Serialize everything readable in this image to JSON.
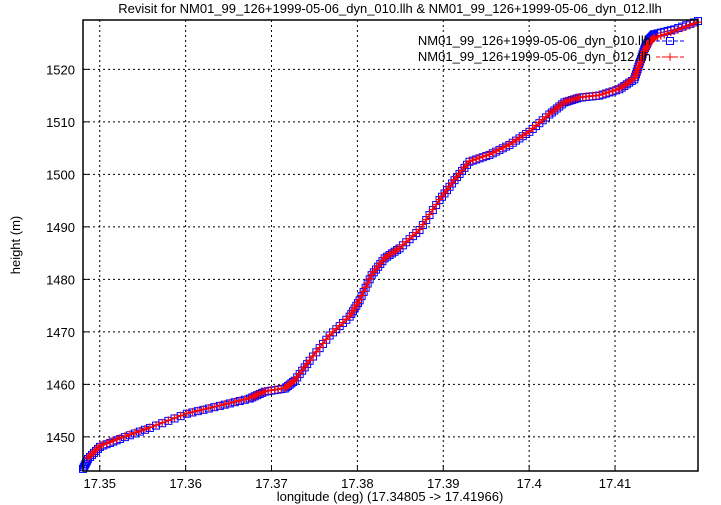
{
  "chart_data": {
    "type": "line",
    "title": "Revisit for NM01_99_126+1999-05-06_dyn_010.llh & NM01_99_126+1999-05-06_dyn_012.llh",
    "xlabel": "longitude (deg) (17.34805 -> 17.41966)",
    "ylabel": "height (m)",
    "xlim": [
      17.34805,
      17.41966
    ],
    "ylim": [
      1443.5,
      1529.4
    ],
    "xticks": [
      17.35,
      17.36,
      17.37,
      17.38,
      17.39,
      17.4,
      17.41
    ],
    "xtick_labels": [
      "17.35",
      "17.36",
      "17.37",
      "17.38",
      "17.39",
      "17.4",
      "17.41"
    ],
    "yticks": [
      1450,
      1460,
      1470,
      1480,
      1490,
      1500,
      1510,
      1520
    ],
    "ytick_labels": [
      "1450",
      "1460",
      "1470",
      "1480",
      "1490",
      "1500",
      "1510",
      "1520"
    ],
    "grid": true,
    "legend_position": "top-right",
    "series": [
      {
        "name": "NM01_99_126+1999-05-06_dyn_010.llh",
        "color": "#0000ff",
        "marker": "square",
        "x": [
          17.34805,
          17.34863,
          17.35003,
          17.35235,
          17.35584,
          17.36014,
          17.36398,
          17.36747,
          17.36921,
          17.37154,
          17.3727,
          17.37444,
          17.37677,
          17.3791,
          17.38026,
          17.38166,
          17.38317,
          17.38491,
          17.38724,
          17.38956,
          17.39131,
          17.39305,
          17.39538,
          17.3977,
          17.40003,
          17.40235,
          17.4041,
          17.40584,
          17.40817,
          17.41049,
          17.41224,
          17.41282,
          17.4134,
          17.41398,
          17.41456,
          17.41689,
          17.41966
        ],
        "y": [
          1443.9,
          1445.8,
          1448.1,
          1449.6,
          1451.7,
          1454.4,
          1455.9,
          1457.3,
          1458.6,
          1459.2,
          1460.7,
          1464.5,
          1469.3,
          1472.9,
          1476.0,
          1480.8,
          1484.0,
          1485.9,
          1489.4,
          1495.1,
          1498.9,
          1502.4,
          1503.7,
          1505.6,
          1508.1,
          1511.4,
          1513.7,
          1514.6,
          1515.0,
          1516.2,
          1518.1,
          1521.0,
          1523.8,
          1525.7,
          1526.7,
          1527.6,
          1529.2
        ]
      },
      {
        "name": "NM01_99_126+1999-05-06_dyn_012.llh",
        "color": "#ff0000",
        "marker": "plus",
        "x": [
          17.34863,
          17.35003,
          17.35235,
          17.35584,
          17.36014,
          17.36398,
          17.36747,
          17.36921,
          17.37154,
          17.3727,
          17.37444,
          17.37677,
          17.3791,
          17.38026,
          17.38166,
          17.38317,
          17.38491,
          17.38724,
          17.38956,
          17.39131,
          17.39305,
          17.39538,
          17.3977,
          17.40003,
          17.40235,
          17.4041,
          17.40584,
          17.40817,
          17.41049,
          17.41224,
          17.41282,
          17.4134,
          17.41398,
          17.41456,
          17.41689,
          17.41966
        ],
        "y": [
          1446.0,
          1448.3,
          1449.8,
          1451.8,
          1454.5,
          1456.0,
          1457.4,
          1458.7,
          1459.3,
          1460.8,
          1464.6,
          1469.4,
          1473.0,
          1476.1,
          1480.9,
          1484.1,
          1486.0,
          1489.5,
          1495.2,
          1499.0,
          1502.5,
          1503.8,
          1505.7,
          1508.2,
          1511.5,
          1513.8,
          1514.7,
          1515.1,
          1516.3,
          1518.3,
          1520.8,
          1523.4,
          1525.2,
          1526.0,
          1527.3,
          1529.0
        ]
      }
    ]
  }
}
